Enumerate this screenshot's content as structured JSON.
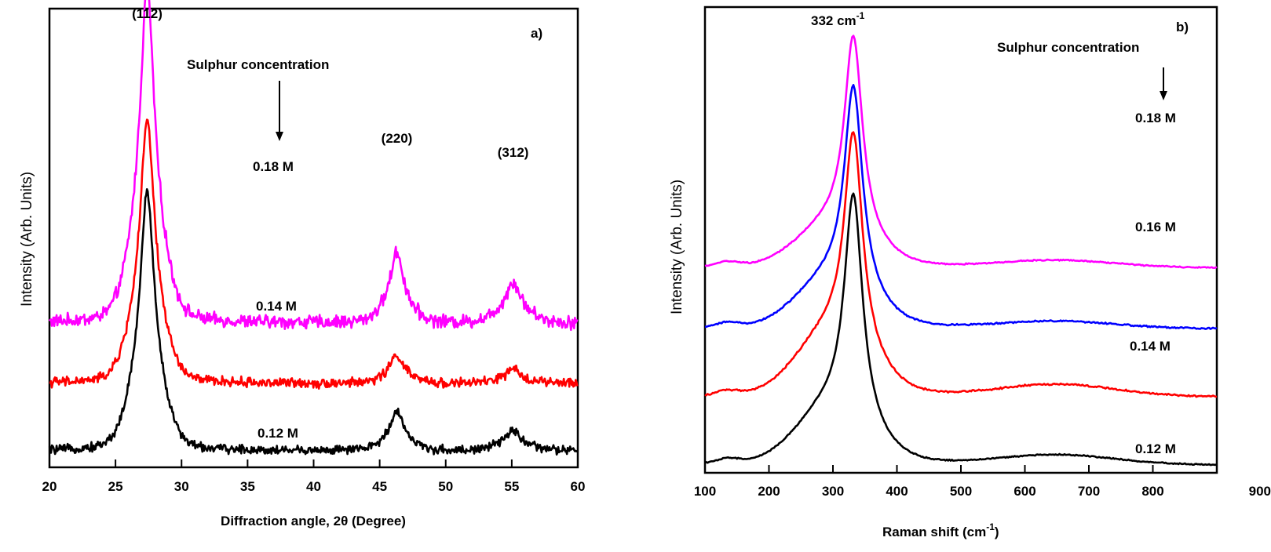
{
  "chart_data": [
    {
      "type": "line",
      "panel_label": "a)",
      "xlabel": "Diffraction angle, 2θ (Degree)",
      "ylabel": "Intensity (Arb. Units)",
      "xlim": [
        20,
        60
      ],
      "xticks": [
        20,
        25,
        30,
        35,
        40,
        45,
        50,
        55,
        60
      ],
      "grid": false,
      "annotation": "Sulphur concentration",
      "peak_labels": [
        {
          "text": "(112)",
          "x": 27.4
        },
        {
          "text": "(220)",
          "x": 46.3
        },
        {
          "text": "(312)",
          "x": 55.1
        }
      ],
      "peaks": [
        {
          "center": 27.4,
          "width": 0.85
        },
        {
          "center": 46.3,
          "width": 0.75
        },
        {
          "center": 55.1,
          "width": 0.9
        }
      ],
      "series": [
        {
          "name": "0.18 M",
          "color": "#ff00ff",
          "baseline": 0.18,
          "peak_heights": [
            1.0,
            0.21,
            0.12
          ],
          "noise": 0.03
        },
        {
          "name": "0.14 M",
          "color": "#ff0000",
          "baseline": 0.0,
          "peak_heights": [
            0.78,
            0.085,
            0.04
          ],
          "noise": 0.022
        },
        {
          "name": "0.12 M",
          "color": "#000000",
          "baseline": -0.2,
          "peak_heights": [
            0.77,
            0.12,
            0.06
          ],
          "noise": 0.02
        }
      ]
    },
    {
      "type": "line",
      "panel_label": "b)",
      "xlabel": "Raman shift (cm",
      "xlabel_sup": "-1",
      "xlabel_end": ")",
      "ylabel": "Intensity (Arb. Units)",
      "xlim": [
        100,
        900
      ],
      "xticks": [
        100,
        200,
        300,
        400,
        500,
        600,
        700,
        800,
        900
      ],
      "grid": false,
      "annotation": "Sulphur concentration",
      "peak_label": {
        "text": "332 cm",
        "sup": "-1",
        "x": 332
      },
      "series": [
        {
          "name": "0.18 M",
          "color": "#ff00ff",
          "baseline": 0.81,
          "peak": 0.82,
          "shoulder": 0.16,
          "broad": 0.03,
          "noise": 0.004
        },
        {
          "name": "0.16 M",
          "color": "#0000ff",
          "baseline": 0.56,
          "peak": 0.84,
          "shoulder": 0.19,
          "broad": 0.03,
          "noise": 0.005
        },
        {
          "name": "0.14 M",
          "color": "#ff0000",
          "baseline": 0.28,
          "peak": 0.88,
          "shoulder": 0.25,
          "broad": 0.05,
          "noise": 0.006
        },
        {
          "name": "0.12 M",
          "color": "#000000",
          "baseline": 0.0,
          "peak": 0.93,
          "shoulder": 0.22,
          "broad": 0.04,
          "noise": 0.004
        }
      ]
    }
  ]
}
